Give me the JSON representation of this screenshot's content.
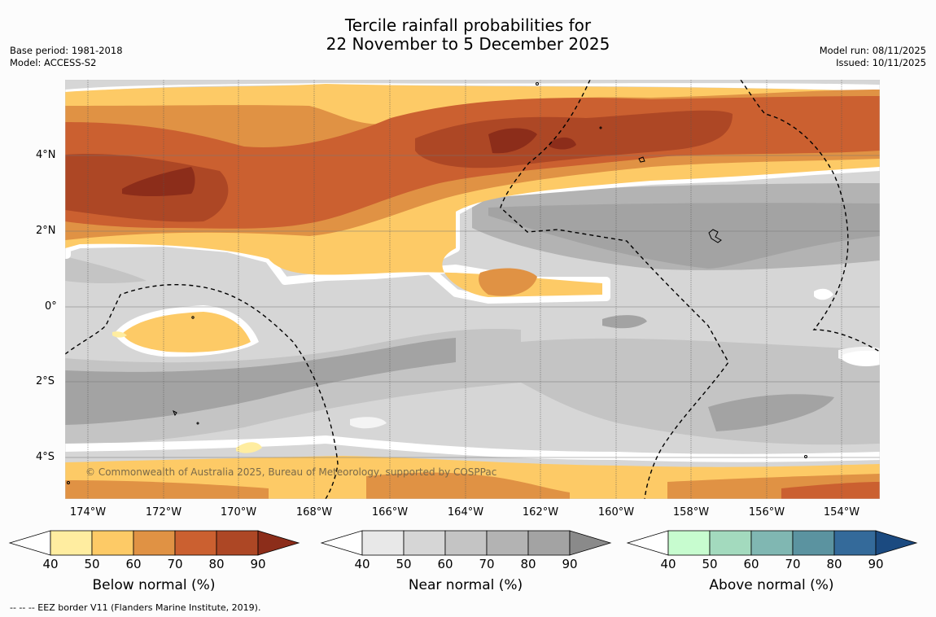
{
  "title": {
    "line1": "Tercile rainfall probabilities for",
    "line2": "22 November to 5 December 2025"
  },
  "meta": {
    "base_period": "Base period: 1981-2018",
    "model": "Model: ACCESS-S2",
    "model_run": "Model run: 08/11/2025",
    "issued": "Issued: 10/11/2025"
  },
  "map": {
    "lat_labels": [
      "4°N",
      "2°N",
      "0°",
      "2°S",
      "4°S"
    ],
    "lon_labels": [
      "174°W",
      "172°W",
      "170°W",
      "168°W",
      "166°W",
      "164°W",
      "162°W",
      "160°W",
      "158°W",
      "156°W",
      "154°W"
    ],
    "copyright": "© Commonwealth of Australia 2025, Bureau of Meteorology, supported by COSPPac",
    "footnote": "--  --  -- EEZ border V11 (Flanders Marine Institute, 2019)."
  },
  "colorbars": [
    {
      "label": "Below normal (%)",
      "ticks": [
        "40",
        "50",
        "60",
        "70",
        "80",
        "90"
      ],
      "colors": [
        "#ffeda0",
        "#fdca66",
        "#e09244",
        "#cb6030",
        "#ad4725",
        "#8c2d1a"
      ]
    },
    {
      "label": "Near normal (%)",
      "ticks": [
        "40",
        "50",
        "60",
        "70",
        "80",
        "90"
      ],
      "colors": [
        "#e8e8e8",
        "#d6d6d6",
        "#c4c4c4",
        "#b3b3b3",
        "#a3a3a3",
        "#8a8a8a"
      ]
    },
    {
      "label": "Above normal (%)",
      "ticks": [
        "40",
        "50",
        "60",
        "70",
        "80",
        "90"
      ],
      "colors": [
        "#c7fccf",
        "#a3dabe",
        "#80b7b2",
        "#5b93a0",
        "#346a9a",
        "#1b4a80"
      ]
    }
  ]
}
